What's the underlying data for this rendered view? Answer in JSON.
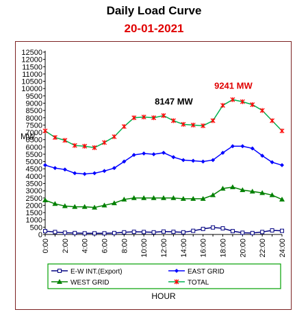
{
  "chart_data": {
    "type": "line",
    "title": "Daily Load Curve",
    "subtitle": "20-01-2021",
    "xlabel": "HOUR",
    "ylabel": "MW",
    "ylim": [
      0,
      12500
    ],
    "ytick_step": 500,
    "x_hours": [
      0,
      1,
      2,
      3,
      4,
      5,
      6,
      7,
      8,
      9,
      10,
      11,
      12,
      13,
      14,
      15,
      16,
      17,
      18,
      19,
      20,
      21,
      22,
      23,
      24
    ],
    "xtick_labels": [
      "0:00",
      "2:00",
      "4:00",
      "6:00",
      "8:00",
      "10:00",
      "12:00",
      "14:00",
      "16:00",
      "18:00",
      "20:00",
      "22:00",
      "24:00"
    ],
    "grid": false,
    "legend_position": "bottom",
    "series": [
      {
        "name": "E-W INT.(Export)",
        "color": "#000080",
        "marker": "square-open",
        "values": [
          230,
          170,
          120,
          100,
          80,
          80,
          80,
          100,
          150,
          180,
          170,
          150,
          200,
          180,
          150,
          250,
          380,
          480,
          420,
          230,
          120,
          100,
          170,
          280,
          250
        ]
      },
      {
        "name": "EAST GRID",
        "color": "#0000ff",
        "marker": "diamond",
        "values": [
          4750,
          4550,
          4450,
          4200,
          4150,
          4200,
          4350,
          4550,
          5000,
          5450,
          5550,
          5500,
          5600,
          5300,
          5100,
          5050,
          5000,
          5100,
          5600,
          6050,
          6050,
          5900,
          5400,
          4950,
          4750
        ]
      },
      {
        "name": "WEST GRID",
        "color": "#008000",
        "marker": "triangle",
        "values": [
          2350,
          2100,
          1950,
          1900,
          1900,
          1850,
          2000,
          2150,
          2400,
          2500,
          2500,
          2500,
          2500,
          2500,
          2450,
          2450,
          2450,
          2700,
          3150,
          3250,
          3050,
          2950,
          2850,
          2700,
          2400
        ]
      },
      {
        "name": "TOTAL",
        "color": "#ff0000",
        "marker": "star",
        "line_color": "#00b050",
        "values": [
          7100,
          6650,
          6450,
          6100,
          6050,
          5950,
          6300,
          6700,
          7400,
          8000,
          8050,
          8000,
          8147,
          7800,
          7550,
          7500,
          7450,
          7800,
          8850,
          9241,
          9100,
          8900,
          8500,
          7800,
          7100
        ]
      }
    ],
    "annotations": [
      {
        "text": "8147 MW",
        "x": 12,
        "y": 8147,
        "color": "#000000"
      },
      {
        "text": "9241 MW",
        "x": 19,
        "y": 9241,
        "color": "#e00000"
      }
    ]
  }
}
